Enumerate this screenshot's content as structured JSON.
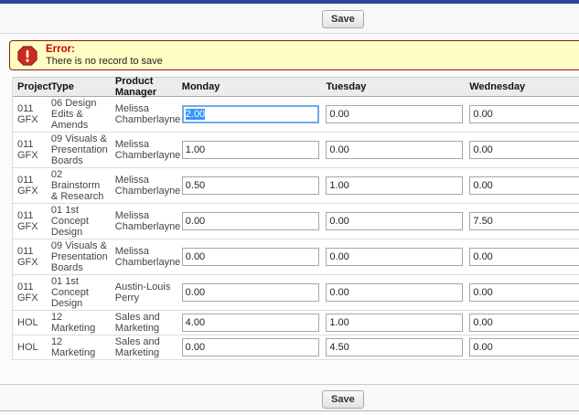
{
  "toolbar": {
    "save_label": "Save"
  },
  "error": {
    "title": "Error:",
    "message": "There is no record to save"
  },
  "icons": {
    "error": "error-octagon-icon"
  },
  "colors": {
    "accent_blue": "#2e4399",
    "error_text_red": "#cc0000",
    "error_bg": "#fffdc2",
    "error_border": "#8e1b12",
    "selection_blue": "#3297fd",
    "focus_border_blue": "#74a7e8"
  },
  "table": {
    "headers": [
      "Project",
      "Type",
      "Product Manager",
      "Monday",
      "Tuesday",
      "Wednesday"
    ],
    "rows": [
      {
        "project": "011 GFX",
        "type": "06 Design Edits & Amends",
        "manager": "Melissa Chamberlayne",
        "monday": "2.00",
        "tuesday": "0.00",
        "wednesday": "0.00",
        "focused_day": "monday"
      },
      {
        "project": "011 GFX",
        "type": "09 Visuals & Presentation Boards",
        "manager": "Melissa Chamberlayne",
        "monday": "1.00",
        "tuesday": "0.00",
        "wednesday": "0.00"
      },
      {
        "project": "011 GFX",
        "type": "02 Brainstorm & Research",
        "manager": "Melissa Chamberlayne",
        "monday": "0.50",
        "tuesday": "1.00",
        "wednesday": "0.00"
      },
      {
        "project": "011 GFX",
        "type": "01 1st Concept Design",
        "manager": "Melissa Chamberlayne",
        "monday": "0.00",
        "tuesday": "0.00",
        "wednesday": "7.50"
      },
      {
        "project": "011 GFX",
        "type": "09 Visuals & Presentation Boards",
        "manager": "Melissa Chamberlayne",
        "monday": "0.00",
        "tuesday": "0.00",
        "wednesday": "0.00"
      },
      {
        "project": "011 GFX",
        "type": "01 1st Concept Design",
        "manager": "Austin-Louis Perry",
        "monday": "0.00",
        "tuesday": "0.00",
        "wednesday": "0.00"
      },
      {
        "project": "HOL",
        "type": "12 Marketing",
        "manager": "Sales and Marketing",
        "monday": "4.00",
        "tuesday": "1.00",
        "wednesday": "0.00"
      },
      {
        "project": "HOL",
        "type": "12 Marketing",
        "manager": "Sales and Marketing",
        "monday": "0.00",
        "tuesday": "4.50",
        "wednesday": "0.00"
      }
    ]
  }
}
